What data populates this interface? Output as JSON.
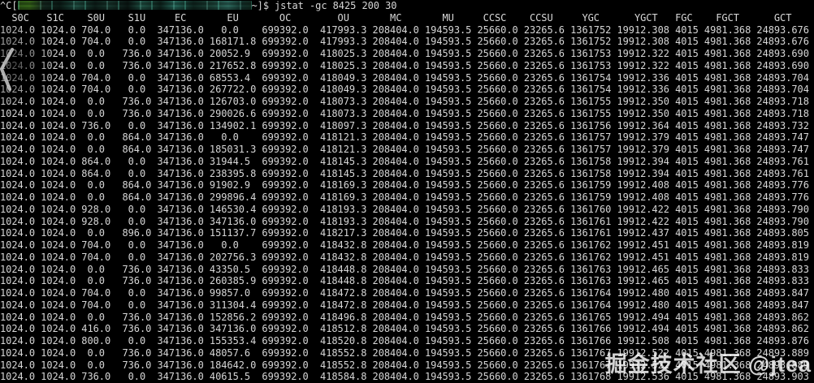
{
  "colors": {
    "background": "#000000",
    "text": "#d6d6d6",
    "watermark": "#ffffff",
    "redaction_teal": "#1e4f42",
    "redaction_green": "#2b5516"
  },
  "terminal": {
    "prompt_prefix": "^C[",
    "prompt_suffix": "~]$",
    "command": "jstat -gc 8425 200 30",
    "columns": [
      "S0C",
      "S1C",
      "S0U",
      "S1U",
      "EC",
      "EU",
      "OC",
      "OU",
      "MC",
      "MU",
      "CCSC",
      "CCSU",
      "YGC",
      "YGCT",
      "FGC",
      "FGCT",
      "GCT"
    ],
    "rows": [
      [
        "1024.0",
        "1024.0",
        "704.0",
        "0.0",
        "347136.0",
        "0.0",
        "699392.0",
        "417993.3",
        "208404.0",
        "194593.5",
        "25660.0",
        "23265.6",
        "1361752",
        "19912.308",
        "4015",
        "4981.368",
        "24893.676"
      ],
      [
        "1024.0",
        "1024.0",
        "704.0",
        "0.0",
        "347136.0",
        "168171.8",
        "699392.0",
        "417993.3",
        "208404.0",
        "194593.5",
        "25660.0",
        "23265.6",
        "1361752",
        "19912.308",
        "4015",
        "4981.368",
        "24893.676"
      ],
      [
        "1024.0",
        "1024.0",
        "0.0",
        "736.0",
        "347136.0",
        "20052.9",
        "699392.0",
        "418025.3",
        "208404.0",
        "194593.5",
        "25660.0",
        "23265.6",
        "1361753",
        "19912.322",
        "4015",
        "4981.368",
        "24893.690"
      ],
      [
        "1024.0",
        "1024.0",
        "0.0",
        "736.0",
        "347136.0",
        "217652.8",
        "699392.0",
        "418025.3",
        "208404.0",
        "194593.5",
        "25660.0",
        "23265.6",
        "1361753",
        "19912.322",
        "4015",
        "4981.368",
        "24893.690"
      ],
      [
        "1024.0",
        "1024.0",
        "704.0",
        "0.0",
        "347136.0",
        "68553.4",
        "699392.0",
        "418049.3",
        "208404.0",
        "194593.5",
        "25660.0",
        "23265.6",
        "1361754",
        "19912.336",
        "4015",
        "4981.368",
        "24893.704"
      ],
      [
        "1024.0",
        "1024.0",
        "704.0",
        "0.0",
        "347136.0",
        "267722.0",
        "699392.0",
        "418049.3",
        "208404.0",
        "194593.5",
        "25660.0",
        "23265.6",
        "1361754",
        "19912.336",
        "4015",
        "4981.368",
        "24893.704"
      ],
      [
        "1024.0",
        "1024.0",
        "0.0",
        "736.0",
        "347136.0",
        "126703.0",
        "699392.0",
        "418073.3",
        "208404.0",
        "194593.5",
        "25660.0",
        "23265.6",
        "1361755",
        "19912.350",
        "4015",
        "4981.368",
        "24893.718"
      ],
      [
        "1024.0",
        "1024.0",
        "0.0",
        "736.0",
        "347136.0",
        "290026.6",
        "699392.0",
        "418073.3",
        "208404.0",
        "194593.5",
        "25660.0",
        "23265.6",
        "1361755",
        "19912.350",
        "4015",
        "4981.368",
        "24893.718"
      ],
      [
        "1024.0",
        "1024.0",
        "736.0",
        "0.0",
        "347136.0",
        "134902.1",
        "699392.0",
        "418097.3",
        "208404.0",
        "194593.5",
        "25660.0",
        "23265.6",
        "1361756",
        "19912.364",
        "4015",
        "4981.368",
        "24893.732"
      ],
      [
        "1024.0",
        "1024.0",
        "0.0",
        "864.0",
        "347136.0",
        "0.0",
        "699392.0",
        "418121.3",
        "208404.0",
        "194593.5",
        "25660.0",
        "23265.6",
        "1361757",
        "19912.379",
        "4015",
        "4981.368",
        "24893.747"
      ],
      [
        "1024.0",
        "1024.0",
        "0.0",
        "864.0",
        "347136.0",
        "185031.3",
        "699392.0",
        "418121.3",
        "208404.0",
        "194593.5",
        "25660.0",
        "23265.6",
        "1361757",
        "19912.379",
        "4015",
        "4981.368",
        "24893.747"
      ],
      [
        "1024.0",
        "1024.0",
        "864.0",
        "0.0",
        "347136.0",
        "31944.5",
        "699392.0",
        "418145.3",
        "208404.0",
        "194593.5",
        "25660.0",
        "23265.6",
        "1361758",
        "19912.394",
        "4015",
        "4981.368",
        "24893.761"
      ],
      [
        "1024.0",
        "1024.0",
        "864.0",
        "0.0",
        "347136.0",
        "238395.8",
        "699392.0",
        "418145.3",
        "208404.0",
        "194593.5",
        "25660.0",
        "23265.6",
        "1361758",
        "19912.394",
        "4015",
        "4981.368",
        "24893.761"
      ],
      [
        "1024.0",
        "1024.0",
        "0.0",
        "864.0",
        "347136.0",
        "91902.9",
        "699392.0",
        "418169.3",
        "208404.0",
        "194593.5",
        "25660.0",
        "23265.6",
        "1361759",
        "19912.408",
        "4015",
        "4981.368",
        "24893.776"
      ],
      [
        "1024.0",
        "1024.0",
        "0.0",
        "864.0",
        "347136.0",
        "299896.4",
        "699392.0",
        "418169.3",
        "208404.0",
        "194593.5",
        "25660.0",
        "23265.6",
        "1361759",
        "19912.408",
        "4015",
        "4981.368",
        "24893.776"
      ],
      [
        "1024.0",
        "1024.0",
        "928.0",
        "0.0",
        "347136.0",
        "146530.4",
        "699392.0",
        "418193.3",
        "208404.0",
        "194593.5",
        "25660.0",
        "23265.6",
        "1361760",
        "19912.422",
        "4015",
        "4981.368",
        "24893.790"
      ],
      [
        "1024.0",
        "1024.0",
        "928.0",
        "0.0",
        "347136.0",
        "347136.0",
        "699392.0",
        "418193.3",
        "208404.0",
        "194593.5",
        "25660.0",
        "23265.6",
        "1361761",
        "19912.422",
        "4015",
        "4981.368",
        "24893.790"
      ],
      [
        "1024.0",
        "1024.0",
        "0.0",
        "896.0",
        "347136.0",
        "151137.7",
        "699392.0",
        "418217.3",
        "208404.0",
        "194593.5",
        "25660.0",
        "23265.6",
        "1361761",
        "19912.437",
        "4015",
        "4981.368",
        "24893.805"
      ],
      [
        "1024.0",
        "1024.0",
        "704.0",
        "0.0",
        "347136.0",
        "0.0",
        "699392.0",
        "418432.8",
        "208404.0",
        "194593.5",
        "25660.0",
        "23265.6",
        "1361762",
        "19912.451",
        "4015",
        "4981.368",
        "24893.819"
      ],
      [
        "1024.0",
        "1024.0",
        "704.0",
        "0.0",
        "347136.0",
        "202756.3",
        "699392.0",
        "418432.8",
        "208404.0",
        "194593.5",
        "25660.0",
        "23265.6",
        "1361762",
        "19912.451",
        "4015",
        "4981.368",
        "24893.819"
      ],
      [
        "1024.0",
        "1024.0",
        "0.0",
        "736.0",
        "347136.0",
        "43350.5",
        "699392.0",
        "418448.8",
        "208404.0",
        "194593.5",
        "25660.0",
        "23265.6",
        "1361763",
        "19912.465",
        "4015",
        "4981.368",
        "24893.833"
      ],
      [
        "1024.0",
        "1024.0",
        "0.0",
        "736.0",
        "347136.0",
        "260385.9",
        "699392.0",
        "418448.8",
        "208404.0",
        "194593.5",
        "25660.0",
        "23265.6",
        "1361763",
        "19912.465",
        "4015",
        "4981.368",
        "24893.833"
      ],
      [
        "1024.0",
        "1024.0",
        "704.0",
        "0.0",
        "347136.0",
        "99857.0",
        "699392.0",
        "418472.8",
        "208404.0",
        "194593.5",
        "25660.0",
        "23265.6",
        "1361764",
        "19912.480",
        "4015",
        "4981.368",
        "24893.847"
      ],
      [
        "1024.0",
        "1024.0",
        "704.0",
        "0.0",
        "347136.0",
        "311304.4",
        "699392.0",
        "418472.8",
        "208404.0",
        "194593.5",
        "25660.0",
        "23265.6",
        "1361764",
        "19912.480",
        "4015",
        "4981.368",
        "24893.847"
      ],
      [
        "1024.0",
        "1024.0",
        "0.0",
        "736.0",
        "347136.0",
        "152856.2",
        "699392.0",
        "418496.8",
        "208404.0",
        "194593.5",
        "25660.0",
        "23265.6",
        "1361765",
        "19912.494",
        "4015",
        "4981.368",
        "24893.862"
      ],
      [
        "1024.0",
        "1024.0",
        "416.0",
        "736.0",
        "347136.0",
        "347136.0",
        "699392.0",
        "418512.8",
        "208404.0",
        "194593.5",
        "25660.0",
        "23265.6",
        "1361766",
        "19912.494",
        "4015",
        "4981.368",
        "24893.862"
      ],
      [
        "1024.0",
        "1024.0",
        "800.0",
        "0.0",
        "347136.0",
        "155353.4",
        "699392.0",
        "418520.8",
        "208404.0",
        "194593.5",
        "25660.0",
        "23265.6",
        "1361766",
        "19912.508",
        "4015",
        "4981.368",
        "24893.876"
      ],
      [
        "1024.0",
        "1024.0",
        "0.0",
        "736.0",
        "347136.0",
        "48057.6",
        "699392.0",
        "418552.8",
        "208404.0",
        "194593.5",
        "25660.0",
        "23265.6",
        "1361767",
        "19912.522",
        "4015",
        "4981.368",
        "24893.889"
      ],
      [
        "1024.0",
        "1024.0",
        "0.0",
        "736.0",
        "347136.0",
        "184642.0",
        "699392.0",
        "418552.8",
        "208404.0",
        "194593.5",
        "25660.0",
        "23265.6",
        "1361767",
        "19912.522",
        "4015",
        "4981.368",
        "24893.889"
      ],
      [
        "1024.0",
        "1024.0",
        "736.0",
        "0.0",
        "347136.0",
        "40615.5",
        "699392.0",
        "418584.8",
        "208404.0",
        "194593.5",
        "25660.0",
        "23265.6",
        "1361768",
        "19912.536",
        "4015",
        "4981.368",
        "24893.903"
      ]
    ]
  },
  "overlays": {
    "redaction": "pixelated-censor-block",
    "chevron_icon": "chevron-left"
  },
  "watermark": {
    "text": "掘金技术社区 @jtea"
  }
}
